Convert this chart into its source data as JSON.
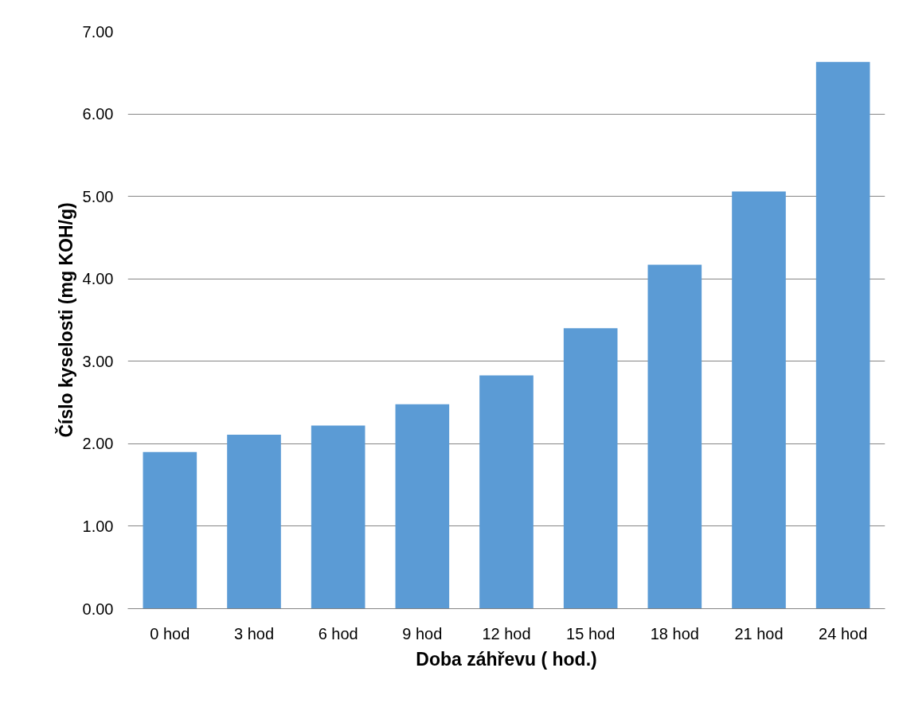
{
  "chart_data": {
    "type": "bar",
    "xlabel": "Doba záhřevu ( hod.)",
    "ylabel": "Číslo kyselosti (mg KOH/g)",
    "categories": [
      "0 hod",
      "3 hod",
      "6 hod",
      "9 hod",
      "12 hod",
      "15 hod",
      "18 hod",
      "21 hod",
      "24 hod"
    ],
    "values": [
      1.9,
      2.11,
      2.22,
      2.48,
      2.83,
      3.4,
      4.17,
      5.06,
      6.63
    ],
    "color": "#5b9bd5",
    "ylim": [
      0,
      7
    ],
    "yticks": [
      {
        "value": 0,
        "label": "0.00"
      },
      {
        "value": 1,
        "label": "1.00"
      },
      {
        "value": 2,
        "label": "2.00"
      },
      {
        "value": 3,
        "label": "3.00"
      },
      {
        "value": 4,
        "label": "4.00"
      },
      {
        "value": 5,
        "label": "5.00"
      },
      {
        "value": 6,
        "label": "6.00"
      },
      {
        "value": 7,
        "label": "7.00"
      }
    ],
    "grid": "y"
  }
}
